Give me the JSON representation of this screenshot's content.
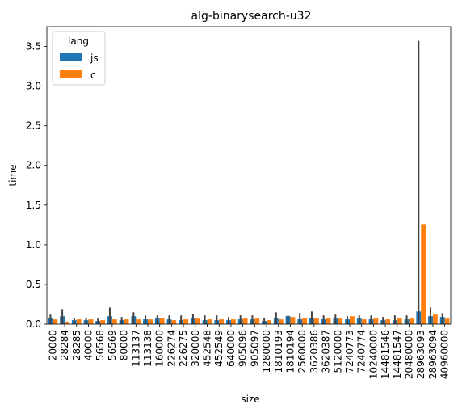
{
  "chart_data": {
    "type": "bar",
    "title": "alg-binarysearch-u32",
    "xlabel": "size",
    "ylabel": "time",
    "ylim": [
      0,
      3.75
    ],
    "yticks": [
      0.0,
      0.5,
      1.0,
      1.5,
      2.0,
      2.5,
      3.0,
      3.5
    ],
    "ytick_labels": [
      "0.0",
      "0.5",
      "1.0",
      "1.5",
      "2.0",
      "2.5",
      "3.0",
      "3.5"
    ],
    "grid": false,
    "legend": {
      "title": "lang",
      "placement": "top-left"
    },
    "categories": [
      "20000",
      "28284",
      "28285",
      "40000",
      "56568",
      "56569",
      "80000",
      "113137",
      "113138",
      "160000",
      "226274",
      "226275",
      "320000",
      "452548",
      "452549",
      "640000",
      "905096",
      "905097",
      "1280000",
      "1810193",
      "1810194",
      "2560000",
      "3620386",
      "3620387",
      "5120000",
      "7240773",
      "7240774",
      "10240000",
      "14481546",
      "14481547",
      "20480000",
      "28963093",
      "28963094",
      "40960000"
    ],
    "series": [
      {
        "name": "js",
        "color": "#1f77b4",
        "values": [
          0.08,
          0.1,
          0.05,
          0.05,
          0.04,
          0.1,
          0.05,
          0.1,
          0.06,
          0.07,
          0.06,
          0.05,
          0.07,
          0.05,
          0.05,
          0.05,
          0.06,
          0.06,
          0.04,
          0.07,
          0.1,
          0.06,
          0.08,
          0.06,
          0.07,
          0.06,
          0.07,
          0.06,
          0.05,
          0.05,
          0.06,
          0.16,
          0.1,
          0.09
        ],
        "error_upper": [
          0.12,
          0.19,
          0.08,
          0.08,
          0.07,
          0.21,
          0.09,
          0.15,
          0.11,
          0.11,
          0.11,
          0.11,
          0.13,
          0.11,
          0.11,
          0.09,
          0.11,
          0.11,
          0.08,
          0.15,
          0.11,
          0.14,
          0.16,
          0.11,
          0.12,
          0.1,
          0.11,
          0.11,
          0.09,
          0.11,
          0.11,
          3.57,
          0.21,
          0.14
        ]
      },
      {
        "name": "c",
        "color": "#ff7f0e",
        "values": [
          0.06,
          0.03,
          0.06,
          0.06,
          0.05,
          0.06,
          0.06,
          0.06,
          0.06,
          0.08,
          0.05,
          0.06,
          0.07,
          0.06,
          0.06,
          0.06,
          0.07,
          0.07,
          0.05,
          0.06,
          0.09,
          0.08,
          0.07,
          0.07,
          0.07,
          0.1,
          0.06,
          0.07,
          0.06,
          0.07,
          0.07,
          1.26,
          0.12,
          0.07
        ]
      }
    ]
  }
}
